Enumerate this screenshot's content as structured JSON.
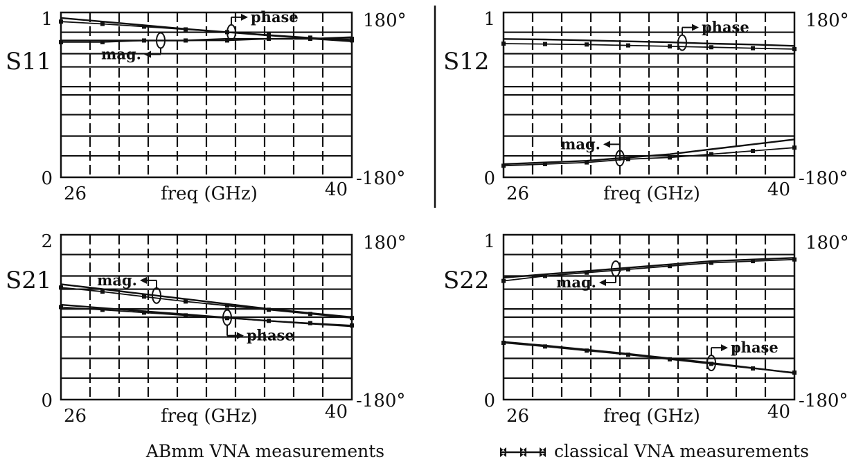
{
  "legend": {
    "abmm": "ABmm VNA measurements",
    "classical": "classical VNA measurements"
  },
  "chart_data": [
    {
      "type": "line",
      "name": "S11",
      "xlabel": "freq (GHz)",
      "x_ticks": [
        "26",
        "40"
      ],
      "y_left_ticks": [
        "0",
        "1"
      ],
      "y_right_ticks": [
        "-180°",
        "180°"
      ],
      "xlim": [
        26,
        40
      ],
      "ylim_left": [
        0,
        1
      ],
      "ylim_right": [
        -180,
        180
      ],
      "x": [
        26,
        28,
        30,
        32,
        34,
        36,
        38,
        40
      ],
      "series": [
        {
          "name": "phase",
          "axis": "right",
          "abmm": [
            168,
            160,
            152,
            144,
            137,
            130,
            123,
            117
          ],
          "classical": [
            160,
            155,
            149,
            143,
            137,
            131,
            125,
            119
          ]
        },
        {
          "name": "mag.",
          "axis": "left",
          "abmm": [
            0.83,
            0.83,
            0.83,
            0.83,
            0.84,
            0.84,
            0.84,
            0.85
          ],
          "classical": [
            0.82,
            0.82,
            0.83,
            0.83,
            0.83,
            0.84,
            0.84,
            0.84
          ]
        }
      ],
      "labels": {
        "phase": "phase",
        "mag": "mag."
      }
    },
    {
      "type": "line",
      "name": "S12",
      "xlabel": "freq (GHz)",
      "x_ticks": [
        "26",
        "40"
      ],
      "y_left_ticks": [
        "0",
        "1"
      ],
      "y_right_ticks": [
        "-180°",
        "180°"
      ],
      "xlim": [
        26,
        40
      ],
      "ylim_left": [
        0,
        1
      ],
      "ylim_right": [
        -180,
        180
      ],
      "x": [
        26,
        28,
        30,
        32,
        34,
        36,
        38,
        40
      ],
      "series": [
        {
          "name": "phase",
          "axis": "right",
          "abmm": [
            122,
            121,
            119,
            117,
            115,
            112,
            110,
            107
          ],
          "classical": [
            112,
            111,
            110,
            108,
            106,
            104,
            102,
            100
          ]
        },
        {
          "name": "mag.",
          "axis": "left",
          "abmm": [
            0.08,
            0.09,
            0.1,
            0.12,
            0.14,
            0.17,
            0.2,
            0.23
          ],
          "classical": [
            0.07,
            0.08,
            0.09,
            0.11,
            0.12,
            0.14,
            0.16,
            0.18
          ]
        }
      ],
      "labels": {
        "phase": "phase",
        "mag": "mag."
      }
    },
    {
      "type": "line",
      "name": "S21",
      "xlabel": "freq (GHz)",
      "x_ticks": [
        "26",
        "40"
      ],
      "y_left_ticks": [
        "0",
        "2"
      ],
      "y_right_ticks": [
        "-180°",
        "180°"
      ],
      "xlim": [
        26,
        40
      ],
      "ylim_left": [
        0,
        2
      ],
      "ylim_right": [
        -180,
        180
      ],
      "x": [
        26,
        28,
        30,
        32,
        34,
        36,
        38,
        40
      ],
      "series": [
        {
          "name": "mag.",
          "axis": "left",
          "abmm": [
            1.4,
            1.34,
            1.28,
            1.22,
            1.16,
            1.1,
            1.05,
            1.0
          ],
          "classical": [
            1.36,
            1.31,
            1.25,
            1.19,
            1.14,
            1.09,
            1.04,
            0.99
          ]
        },
        {
          "name": "phase",
          "axis": "right",
          "abmm": [
            27,
            20,
            13,
            6,
            -1,
            -8,
            -14,
            -20
          ],
          "classical": [
            22,
            16,
            10,
            4,
            -2,
            -8,
            -13,
            -18
          ]
        }
      ],
      "labels": {
        "phase": "phase",
        "mag": "mag."
      }
    },
    {
      "type": "line",
      "name": "S22",
      "xlabel": "freq (GHz)",
      "x_ticks": [
        "26",
        "40"
      ],
      "y_left_ticks": [
        "0",
        "1"
      ],
      "y_right_ticks": [
        "-180°",
        "180°"
      ],
      "xlim": [
        26,
        40
      ],
      "ylim_left": [
        0,
        1
      ],
      "ylim_right": [
        -180,
        180
      ],
      "x": [
        26,
        28,
        30,
        32,
        34,
        36,
        38,
        40
      ],
      "series": [
        {
          "name": "mag.",
          "axis": "left",
          "abmm": [
            0.74,
            0.76,
            0.78,
            0.8,
            0.82,
            0.84,
            0.85,
            0.86
          ],
          "classical": [
            0.72,
            0.75,
            0.77,
            0.79,
            0.81,
            0.83,
            0.84,
            0.85
          ]
        },
        {
          "name": "phase",
          "axis": "right",
          "abmm": [
            -54,
            -62,
            -71,
            -80,
            -90,
            -100,
            -111,
            -122
          ],
          "classical": [
            -56,
            -64,
            -73,
            -82,
            -92,
            -102,
            -112,
            -121
          ]
        }
      ],
      "labels": {
        "phase": "phase",
        "mag": "mag."
      }
    }
  ]
}
